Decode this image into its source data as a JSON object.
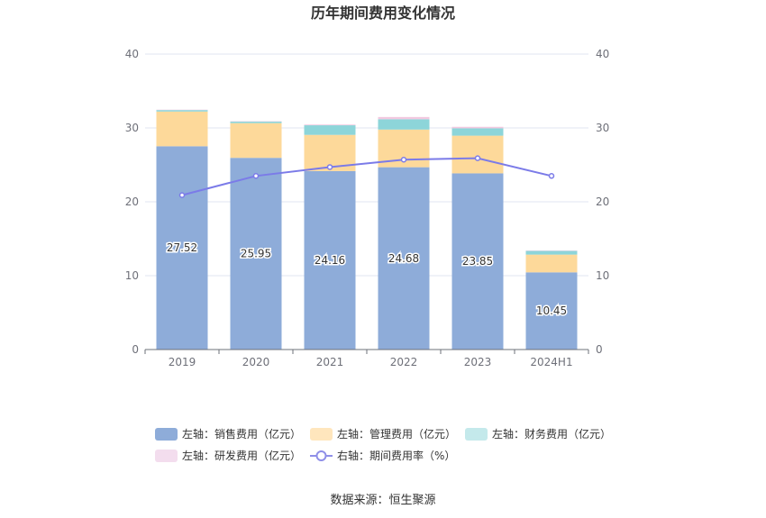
{
  "chart_data": {
    "type": "bar",
    "title": "历年期间费用变化情况",
    "categories": [
      "2019",
      "2020",
      "2021",
      "2022",
      "2023",
      "2024H1"
    ],
    "series": [
      {
        "name": "左轴：销售费用（亿元）",
        "axis": "left",
        "type": "bar",
        "color": "#8eacd9",
        "values": [
          27.52,
          25.95,
          24.16,
          24.68,
          23.85,
          10.45
        ],
        "labels": [
          "27.52",
          "25.95",
          "24.16",
          "24.68",
          "23.85",
          "10.45"
        ]
      },
      {
        "name": "左轴：管理费用（亿元）",
        "axis": "left",
        "type": "bar",
        "color": "#fdd99a",
        "values": [
          4.7,
          4.7,
          4.9,
          5.1,
          5.1,
          2.4
        ]
      },
      {
        "name": "左轴：财务费用（亿元）",
        "axis": "left",
        "type": "bar",
        "color": "#8dd5d9",
        "values": [
          0.2,
          0.2,
          1.3,
          1.4,
          1.0,
          0.5
        ]
      },
      {
        "name": "左轴：研发费用（亿元）",
        "axis": "left",
        "type": "bar",
        "color": "#f2c9e0",
        "values": [
          0.05,
          0.05,
          0.1,
          0.3,
          0.2,
          0.05
        ]
      },
      {
        "name": "右轴：期间费用率（%）",
        "axis": "right",
        "type": "line",
        "color": "#7b7be8",
        "values": [
          20.9,
          23.5,
          24.7,
          25.7,
          25.9,
          23.5
        ]
      }
    ],
    "left_axis": {
      "min": 0,
      "max": 40,
      "ticks": [
        "0",
        "10",
        "20",
        "30",
        "40"
      ]
    },
    "right_axis": {
      "min": 0,
      "max": 40,
      "ticks": [
        "0",
        "10",
        "20",
        "30",
        "40"
      ]
    },
    "grid": true,
    "legend": "bottom"
  },
  "source": "数据来源：恒生聚源",
  "legend_colors": {
    "sales": "#8eacd9",
    "admin": "#ffe6bd",
    "finance": "#c4e9eb",
    "rnd": "#f3ddee",
    "rate": "#8f8fe8"
  }
}
